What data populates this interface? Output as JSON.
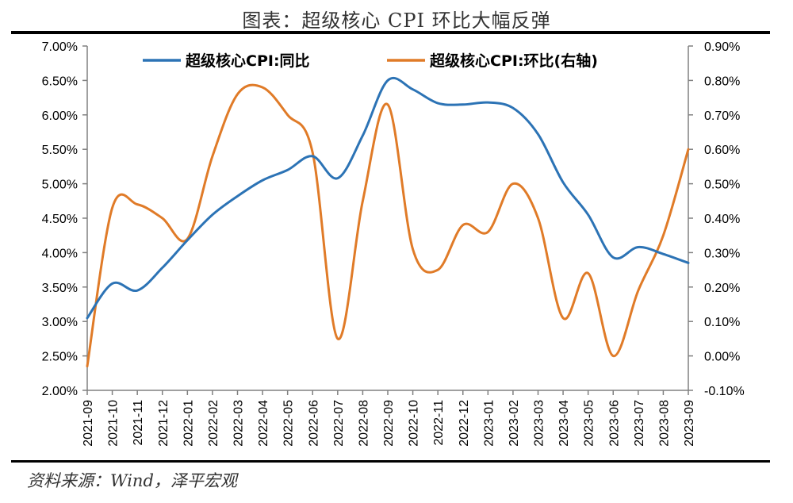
{
  "header": {
    "title": "图表：超级核心 CPI 环比大幅反弹"
  },
  "footer": {
    "source": "资料来源：Wind，泽平宏观"
  },
  "colors": {
    "yoy": "#2c73b5",
    "mom": "#e07b28",
    "axis": "#808080"
  },
  "chart_data": {
    "type": "line",
    "categories": [
      "2021-09",
      "2021-10",
      "2021-11",
      "2021-12",
      "2022-01",
      "2022-02",
      "2022-03",
      "2022-04",
      "2022-05",
      "2022-06",
      "2022-07",
      "2022-08",
      "2022-09",
      "2022-10",
      "2022-11",
      "2022-12",
      "2023-01",
      "2023-02",
      "2023-03",
      "2023-04",
      "2023-05",
      "2023-06",
      "2023-07",
      "2023-08",
      "2023-09"
    ],
    "y_left": {
      "ylim": [
        2.0,
        7.0
      ],
      "ticks": [
        "2.00%",
        "2.50%",
        "3.00%",
        "3.50%",
        "4.00%",
        "4.50%",
        "5.00%",
        "5.50%",
        "6.00%",
        "6.50%",
        "7.00%"
      ]
    },
    "y_right": {
      "ylim": [
        -0.1,
        0.9
      ],
      "ticks": [
        "-0.10%",
        "0.00%",
        "0.10%",
        "0.20%",
        "0.30%",
        "0.40%",
        "0.50%",
        "0.60%",
        "0.70%",
        "0.80%",
        "0.90%"
      ]
    },
    "legend_position": "top",
    "grid": false,
    "series": [
      {
        "name": "超级核心CPI:同比",
        "axis": "left",
        "values": [
          3.05,
          3.55,
          3.45,
          3.78,
          4.18,
          4.55,
          4.82,
          5.05,
          5.2,
          5.4,
          5.08,
          5.7,
          6.5,
          6.37,
          6.17,
          6.15,
          6.18,
          6.1,
          5.72,
          5.02,
          4.55,
          3.93,
          4.08,
          3.98,
          3.85
        ]
      },
      {
        "name": "超级核心CPI:环比(右轴)",
        "axis": "right",
        "values": [
          -0.03,
          0.43,
          0.44,
          0.4,
          0.34,
          0.58,
          0.76,
          0.78,
          0.7,
          0.59,
          0.05,
          0.45,
          0.73,
          0.31,
          0.25,
          0.38,
          0.36,
          0.5,
          0.4,
          0.11,
          0.24,
          0.0,
          0.19,
          0.35,
          0.6
        ]
      }
    ]
  }
}
